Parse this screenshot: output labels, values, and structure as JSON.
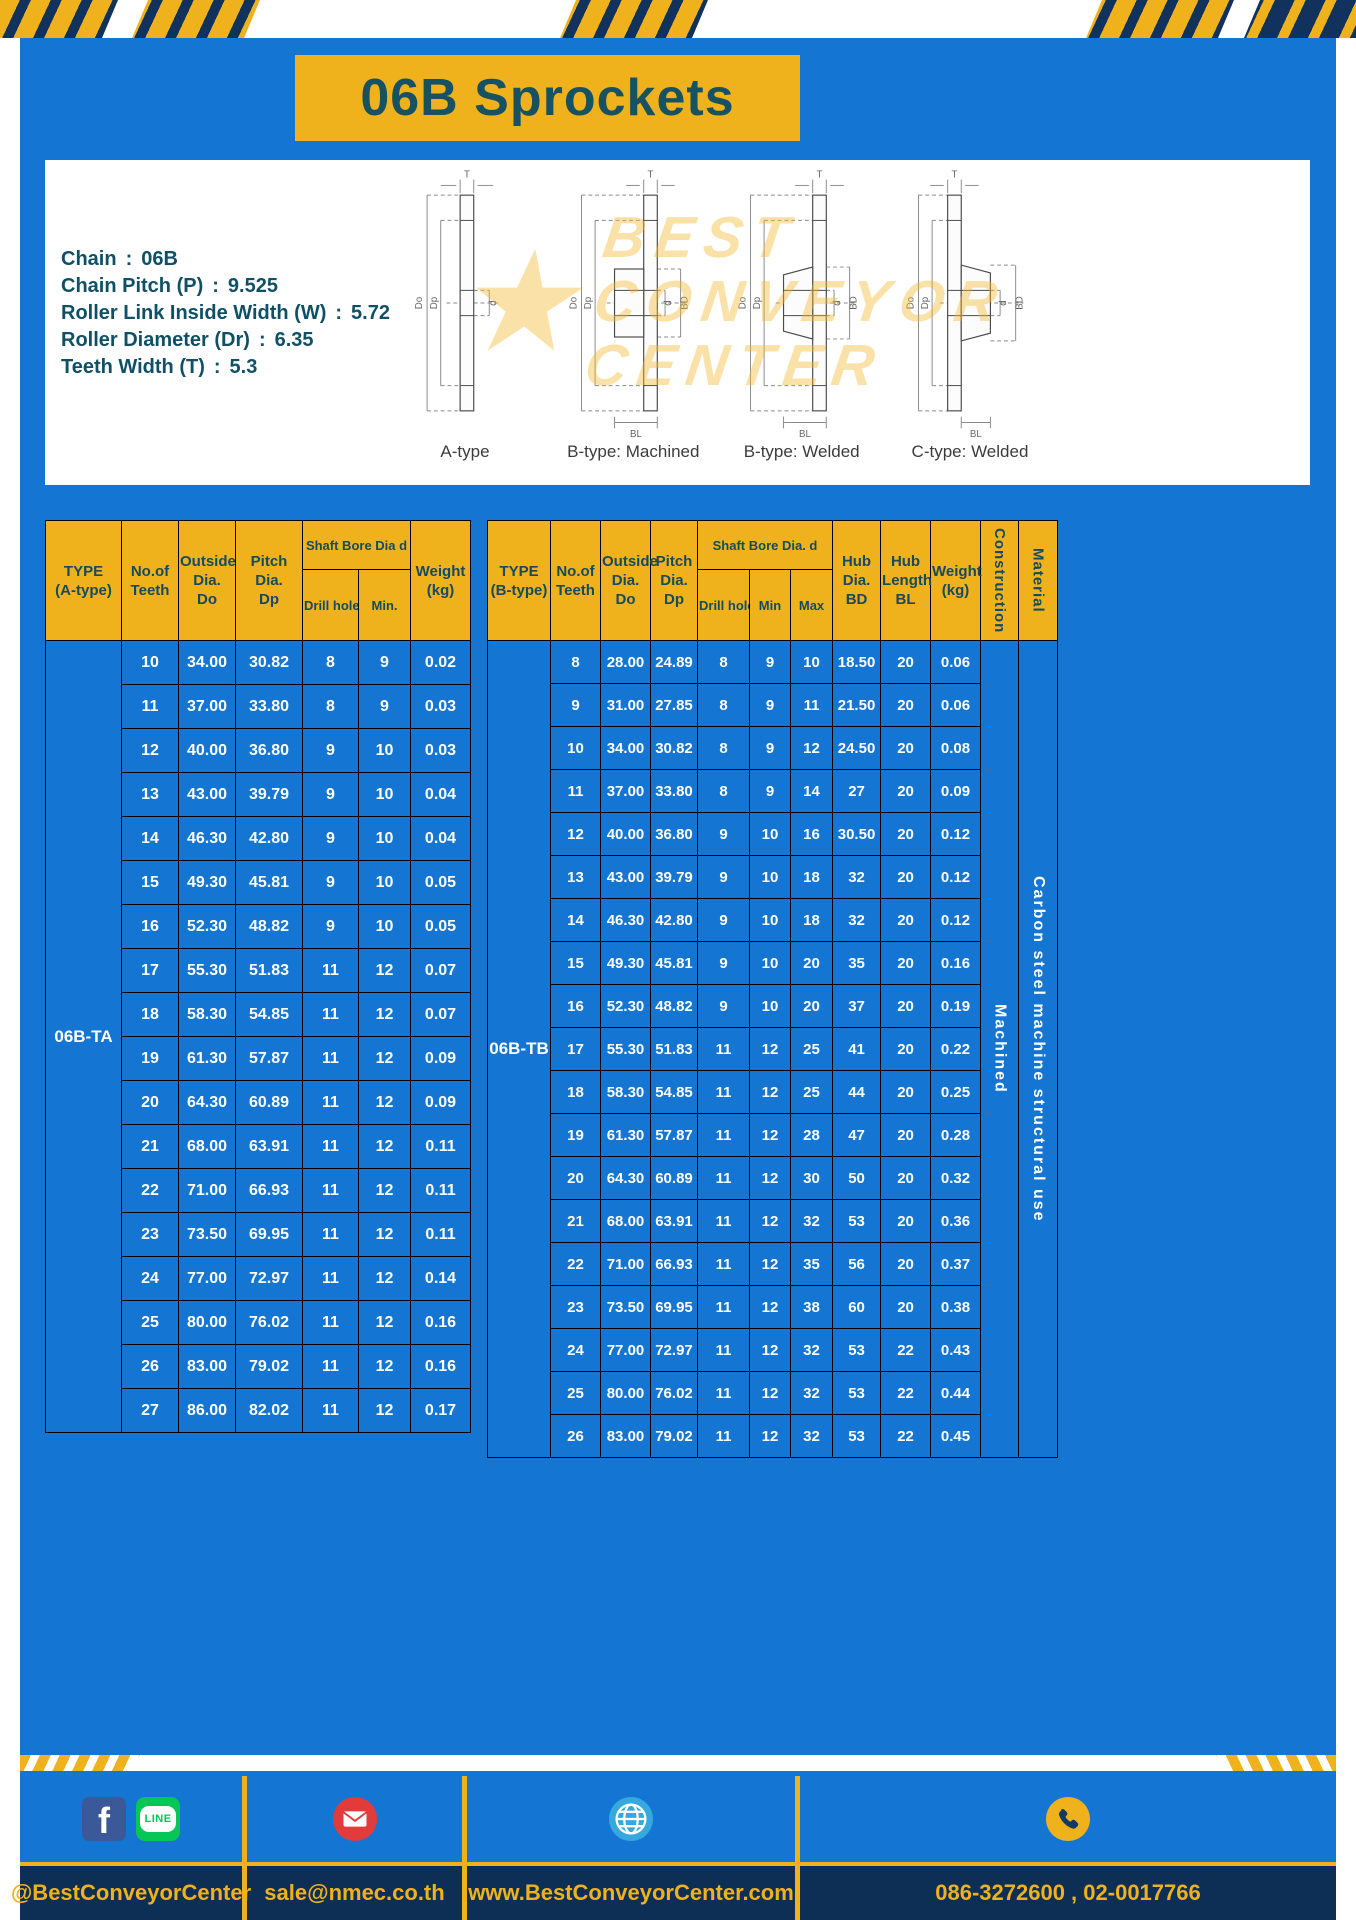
{
  "title": "06B Sprockets",
  "watermark": {
    "star": "★",
    "line1": "BEST",
    "line2": "CONVEYOR",
    "line3": "CENTER"
  },
  "specs": {
    "separator": ":",
    "items": [
      {
        "label": "Chain",
        "value": "06B"
      },
      {
        "label": "Chain Pitch (P)",
        "value": "9.525"
      },
      {
        "label": "Roller Link Inside Width (W)",
        "value": "5.72"
      },
      {
        "label": "Roller Diameter (Dr)",
        "value": "6.35"
      },
      {
        "label": "Teeth Width (T)",
        "value": "5.3"
      }
    ]
  },
  "dims": {
    "T": "T",
    "Do": "Do",
    "Dp": "Dp",
    "d": "d",
    "BD": "BD",
    "BL": "BL"
  },
  "diagrams": [
    {
      "label": "A-type"
    },
    {
      "label": "B-type: Machined"
    },
    {
      "label": "B-type: Welded"
    },
    {
      "label": "C-type: Welded"
    }
  ],
  "table_a": {
    "headers": {
      "type": "TYPE\n(A-type)",
      "teeth": "No.of\nTeeth",
      "outside": "Outside\nDia.\nDo",
      "pitch": "Pitch Dia.\nDp",
      "shaft_bore": "Shaft Bore Dia d",
      "drill": "Drill hole",
      "min": "Min.",
      "weight": "Weight\n(kg)"
    },
    "type_label": "06B-TA",
    "rows": [
      [
        "10",
        "34.00",
        "30.82",
        "8",
        "9",
        "0.02"
      ],
      [
        "11",
        "37.00",
        "33.80",
        "8",
        "9",
        "0.03"
      ],
      [
        "12",
        "40.00",
        "36.80",
        "9",
        "10",
        "0.03"
      ],
      [
        "13",
        "43.00",
        "39.79",
        "9",
        "10",
        "0.04"
      ],
      [
        "14",
        "46.30",
        "42.80",
        "9",
        "10",
        "0.04"
      ],
      [
        "15",
        "49.30",
        "45.81",
        "9",
        "10",
        "0.05"
      ],
      [
        "16",
        "52.30",
        "48.82",
        "9",
        "10",
        "0.05"
      ],
      [
        "17",
        "55.30",
        "51.83",
        "11",
        "12",
        "0.07"
      ],
      [
        "18",
        "58.30",
        "54.85",
        "11",
        "12",
        "0.07"
      ],
      [
        "19",
        "61.30",
        "57.87",
        "11",
        "12",
        "0.09"
      ],
      [
        "20",
        "64.30",
        "60.89",
        "11",
        "12",
        "0.09"
      ],
      [
        "21",
        "68.00",
        "63.91",
        "11",
        "12",
        "0.11"
      ],
      [
        "22",
        "71.00",
        "66.93",
        "11",
        "12",
        "0.11"
      ],
      [
        "23",
        "73.50",
        "69.95",
        "11",
        "12",
        "0.11"
      ],
      [
        "24",
        "77.00",
        "72.97",
        "11",
        "12",
        "0.14"
      ],
      [
        "25",
        "80.00",
        "76.02",
        "11",
        "12",
        "0.16"
      ],
      [
        "26",
        "83.00",
        "79.02",
        "11",
        "12",
        "0.16"
      ],
      [
        "27",
        "86.00",
        "82.02",
        "11",
        "12",
        "0.17"
      ]
    ]
  },
  "table_b": {
    "headers": {
      "type": "TYPE\n(B-type)",
      "teeth": "No.of\nTeeth",
      "outside": "Outside\nDia.\nDo",
      "pitch": "Pitch\nDia.\nDp",
      "shaft_bore": "Shaft Bore Dia. d",
      "drill": "Drill hole",
      "min": "Min",
      "max": "Max",
      "hub_dia": "Hub\nDia.\nBD",
      "hub_len": "Hub\nLength\nBL",
      "weight": "Weight\n(kg)",
      "construction": "Construction",
      "material": "Material"
    },
    "type_label": "06B-TB",
    "construction": "Machined",
    "material": "Carbon steel machine structural use",
    "rows": [
      [
        "8",
        "28.00",
        "24.89",
        "8",
        "9",
        "10",
        "18.50",
        "20",
        "0.06"
      ],
      [
        "9",
        "31.00",
        "27.85",
        "8",
        "9",
        "11",
        "21.50",
        "20",
        "0.06"
      ],
      [
        "10",
        "34.00",
        "30.82",
        "8",
        "9",
        "12",
        "24.50",
        "20",
        "0.08"
      ],
      [
        "11",
        "37.00",
        "33.80",
        "8",
        "9",
        "14",
        "27",
        "20",
        "0.09"
      ],
      [
        "12",
        "40.00",
        "36.80",
        "9",
        "10",
        "16",
        "30.50",
        "20",
        "0.12"
      ],
      [
        "13",
        "43.00",
        "39.79",
        "9",
        "10",
        "18",
        "32",
        "20",
        "0.12"
      ],
      [
        "14",
        "46.30",
        "42.80",
        "9",
        "10",
        "18",
        "32",
        "20",
        "0.12"
      ],
      [
        "15",
        "49.30",
        "45.81",
        "9",
        "10",
        "20",
        "35",
        "20",
        "0.16"
      ],
      [
        "16",
        "52.30",
        "48.82",
        "9",
        "10",
        "20",
        "37",
        "20",
        "0.19"
      ],
      [
        "17",
        "55.30",
        "51.83",
        "11",
        "12",
        "25",
        "41",
        "20",
        "0.22"
      ],
      [
        "18",
        "58.30",
        "54.85",
        "11",
        "12",
        "25",
        "44",
        "20",
        "0.25"
      ],
      [
        "19",
        "61.30",
        "57.87",
        "11",
        "12",
        "28",
        "47",
        "20",
        "0.28"
      ],
      [
        "20",
        "64.30",
        "60.89",
        "11",
        "12",
        "30",
        "50",
        "20",
        "0.32"
      ],
      [
        "21",
        "68.00",
        "63.91",
        "11",
        "12",
        "32",
        "53",
        "20",
        "0.36"
      ],
      [
        "22",
        "71.00",
        "66.93",
        "11",
        "12",
        "35",
        "56",
        "20",
        "0.37"
      ],
      [
        "23",
        "73.50",
        "69.95",
        "11",
        "12",
        "38",
        "60",
        "20",
        "0.38"
      ],
      [
        "24",
        "77.00",
        "72.97",
        "11",
        "12",
        "32",
        "53",
        "22",
        "0.43"
      ],
      [
        "25",
        "80.00",
        "76.02",
        "11",
        "12",
        "32",
        "53",
        "22",
        "0.44"
      ],
      [
        "26",
        "83.00",
        "79.02",
        "11",
        "12",
        "32",
        "53",
        "22",
        "0.45"
      ]
    ]
  },
  "footer": {
    "fb_letter": "f",
    "line_text": "LINE",
    "items": [
      {
        "label": "@BestConveyorCenter"
      },
      {
        "label": "sale@nmec.co.th"
      },
      {
        "label": "www.BestConveyorCenter.com"
      },
      {
        "label": "086-3272600 , 02-0017766"
      }
    ]
  }
}
